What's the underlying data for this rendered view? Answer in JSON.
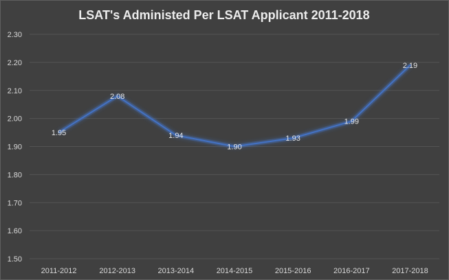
{
  "chart_data": {
    "type": "line",
    "title": "LSAT's Administed Per LSAT Applicant 2011-2018",
    "xlabel": "",
    "ylabel": "",
    "categories": [
      "2011-2012",
      "2012-2013",
      "2013-2014",
      "2014-2015",
      "2015-2016",
      "2016-2017",
      "2017-2018"
    ],
    "series": [
      {
        "values": [
          1.95,
          2.08,
          1.94,
          1.9,
          1.93,
          1.99,
          2.19
        ],
        "labels": [
          "1.95",
          "2.08",
          "1.94",
          "1.90",
          "1.93",
          "1.99",
          "2.19"
        ],
        "color": "#4472c4"
      }
    ],
    "ylim": [
      1.5,
      2.3
    ],
    "yticks": [
      "1.50",
      "1.60",
      "1.70",
      "1.80",
      "1.90",
      "2.00",
      "2.10",
      "2.20",
      "2.30"
    ],
    "grid": true,
    "legend": "none",
    "colors": {
      "background": "#404040",
      "gridline": "#545454",
      "line": "#4472c4",
      "text": "#d9d9d9"
    }
  }
}
